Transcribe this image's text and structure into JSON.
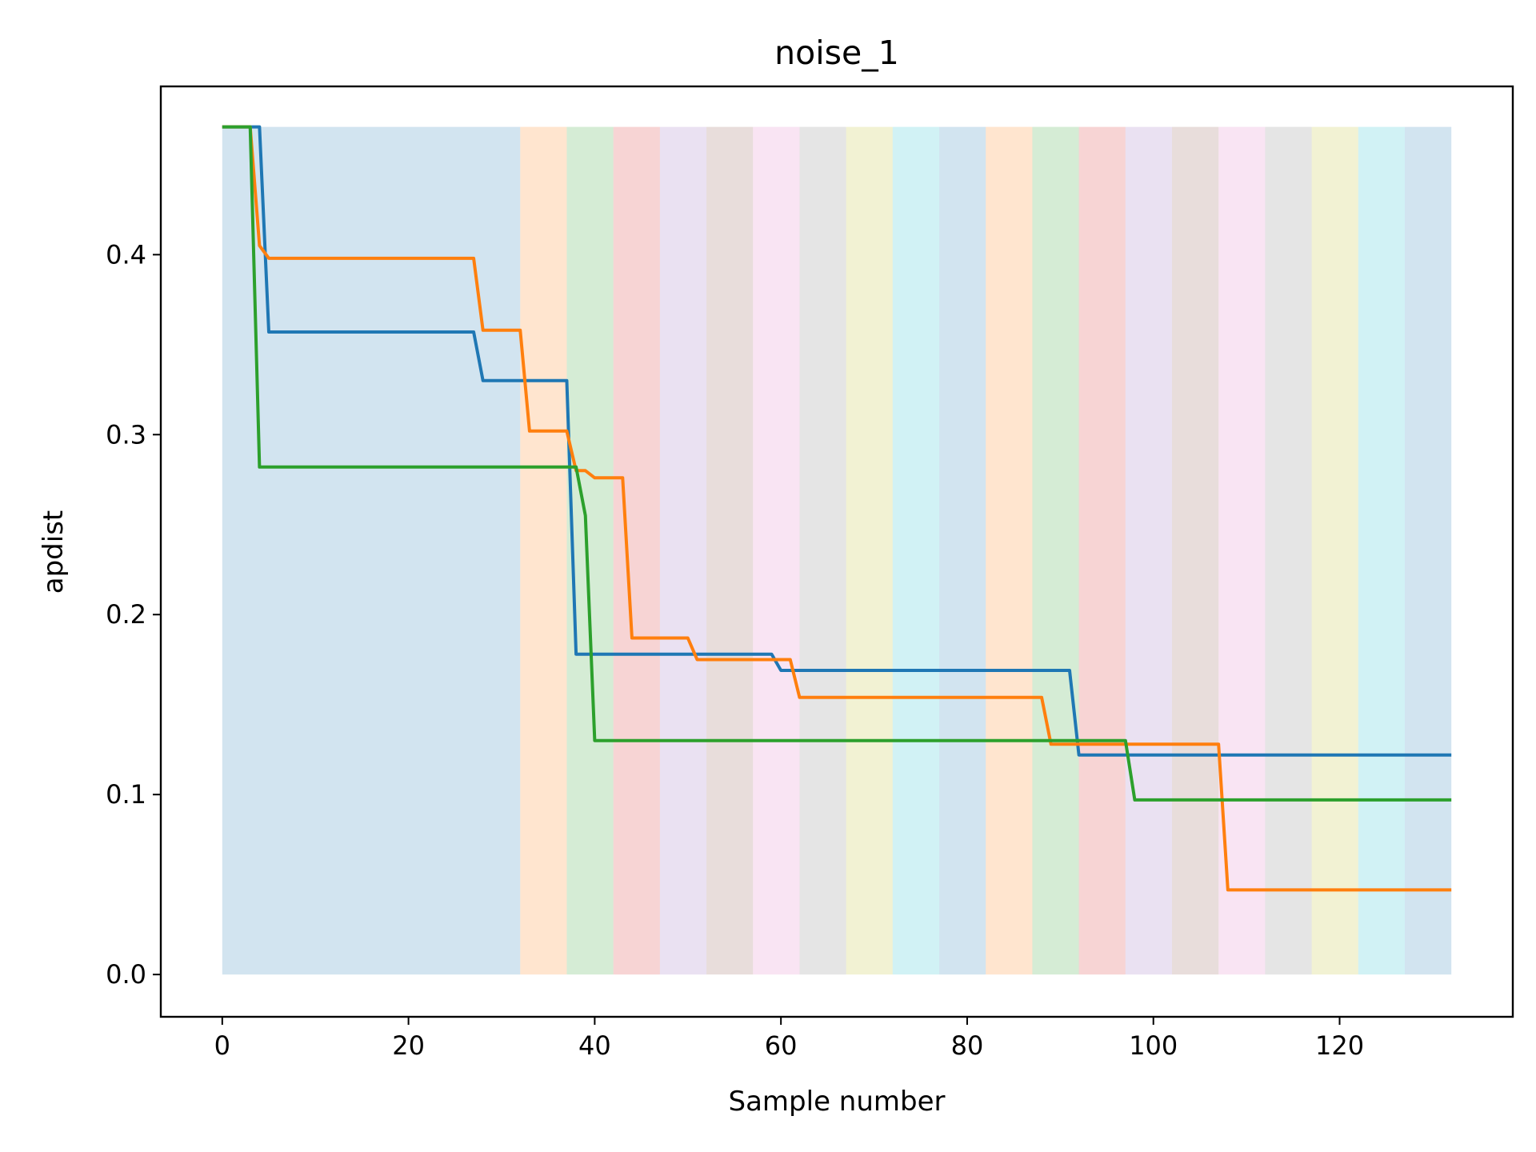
{
  "chart_data": {
    "type": "line",
    "title": "noise_1",
    "xlabel": "Sample number",
    "ylabel": "apdist",
    "xlim": [
      -6.6,
      138.6
    ],
    "ylim": [
      -0.0235,
      0.4935
    ],
    "xticks": [
      0,
      20,
      40,
      60,
      80,
      100,
      120
    ],
    "yticks": [
      0.0,
      0.1,
      0.2,
      0.3,
      0.4
    ],
    "xtick_labels": [
      "0",
      "20",
      "40",
      "60",
      "80",
      "100",
      "120"
    ],
    "ytick_labels": [
      "0.0",
      "0.1",
      "0.2",
      "0.3",
      "0.4"
    ],
    "grid": false,
    "legend": "none",
    "background_bands": {
      "y_range": [
        0,
        0.471
      ],
      "opacity": 0.2,
      "bands": [
        {
          "start": 0,
          "end": 32,
          "color": "#1f77b4"
        },
        {
          "start": 32,
          "end": 37,
          "color": "#ff7f0e"
        },
        {
          "start": 37,
          "end": 42,
          "color": "#2ca02c"
        },
        {
          "start": 42,
          "end": 47,
          "color": "#d62728"
        },
        {
          "start": 47,
          "end": 52,
          "color": "#9467bd"
        },
        {
          "start": 52,
          "end": 57,
          "color": "#8c564b"
        },
        {
          "start": 57,
          "end": 62,
          "color": "#e377c2"
        },
        {
          "start": 62,
          "end": 67,
          "color": "#7f7f7f"
        },
        {
          "start": 67,
          "end": 72,
          "color": "#bcbd22"
        },
        {
          "start": 72,
          "end": 77,
          "color": "#17becf"
        },
        {
          "start": 77,
          "end": 82,
          "color": "#1f77b4"
        },
        {
          "start": 82,
          "end": 87,
          "color": "#ff7f0e"
        },
        {
          "start": 87,
          "end": 92,
          "color": "#2ca02c"
        },
        {
          "start": 92,
          "end": 97,
          "color": "#d62728"
        },
        {
          "start": 97,
          "end": 102,
          "color": "#9467bd"
        },
        {
          "start": 102,
          "end": 107,
          "color": "#8c564b"
        },
        {
          "start": 107,
          "end": 112,
          "color": "#e377c2"
        },
        {
          "start": 112,
          "end": 117,
          "color": "#7f7f7f"
        },
        {
          "start": 117,
          "end": 122,
          "color": "#bcbd22"
        },
        {
          "start": 122,
          "end": 127,
          "color": "#17becf"
        },
        {
          "start": 127,
          "end": 132,
          "color": "#1f77b4"
        }
      ]
    },
    "series": [
      {
        "color": "#1f77b4",
        "points": [
          [
            0,
            0.471
          ],
          [
            4,
            0.471
          ],
          [
            5,
            0.357
          ],
          [
            27,
            0.357
          ],
          [
            28,
            0.33
          ],
          [
            37,
            0.33
          ],
          [
            38,
            0.178
          ],
          [
            59,
            0.178
          ],
          [
            60,
            0.169
          ],
          [
            91,
            0.169
          ],
          [
            92,
            0.122
          ],
          [
            132,
            0.122
          ]
        ]
      },
      {
        "color": "#ff7f0e",
        "points": [
          [
            0,
            0.471
          ],
          [
            3,
            0.471
          ],
          [
            4,
            0.405
          ],
          [
            5,
            0.398
          ],
          [
            27,
            0.398
          ],
          [
            28,
            0.358
          ],
          [
            32,
            0.358
          ],
          [
            33,
            0.302
          ],
          [
            37,
            0.302
          ],
          [
            38,
            0.28
          ],
          [
            39,
            0.28
          ],
          [
            40,
            0.276
          ],
          [
            43,
            0.276
          ],
          [
            44,
            0.187
          ],
          [
            50,
            0.187
          ],
          [
            51,
            0.175
          ],
          [
            61,
            0.175
          ],
          [
            62,
            0.154
          ],
          [
            88,
            0.154
          ],
          [
            89,
            0.128
          ],
          [
            107,
            0.128
          ],
          [
            108,
            0.047
          ],
          [
            132,
            0.047
          ]
        ]
      },
      {
        "color": "#2ca02c",
        "points": [
          [
            0,
            0.471
          ],
          [
            3,
            0.471
          ],
          [
            4,
            0.282
          ],
          [
            38,
            0.282
          ],
          [
            39,
            0.255
          ],
          [
            40,
            0.13
          ],
          [
            97,
            0.13
          ],
          [
            98,
            0.097
          ],
          [
            132,
            0.097
          ]
        ]
      }
    ]
  }
}
